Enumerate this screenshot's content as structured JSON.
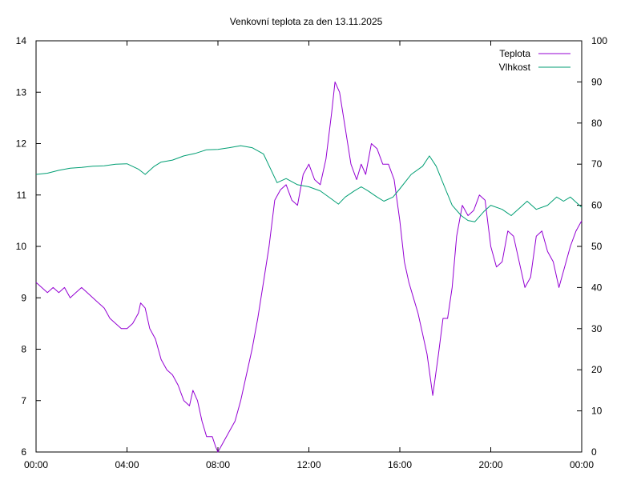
{
  "chart_data": {
    "type": "line",
    "title": "Venkovní teplota za den 13.11.2025",
    "x_ticks": [
      "00:00",
      "04:00",
      "08:00",
      "12:00",
      "16:00",
      "20:00",
      "00:00"
    ],
    "y_left": {
      "min": 6,
      "max": 14,
      "ticks": [
        "6",
        "7",
        "8",
        "9",
        "10",
        "11",
        "12",
        "13",
        "14"
      ]
    },
    "y_right": {
      "min": 0,
      "max": 100,
      "ticks": [
        "0",
        "10",
        "20",
        "30",
        "40",
        "50",
        "60",
        "70",
        "80",
        "90",
        "100"
      ]
    },
    "x_range_hours": [
      0,
      24
    ],
    "legend_position": "top-right",
    "series": [
      {
        "name": "Teplota",
        "axis": "left",
        "color": "#9400d3",
        "points": [
          [
            0.0,
            9.3
          ],
          [
            0.25,
            9.2
          ],
          [
            0.5,
            9.1
          ],
          [
            0.75,
            9.2
          ],
          [
            1.0,
            9.1
          ],
          [
            1.25,
            9.2
          ],
          [
            1.5,
            9.0
          ],
          [
            1.75,
            9.1
          ],
          [
            2.0,
            9.2
          ],
          [
            2.25,
            9.1
          ],
          [
            2.5,
            9.0
          ],
          [
            2.75,
            8.9
          ],
          [
            3.0,
            8.8
          ],
          [
            3.25,
            8.6
          ],
          [
            3.5,
            8.5
          ],
          [
            3.75,
            8.4
          ],
          [
            4.0,
            8.4
          ],
          [
            4.25,
            8.5
          ],
          [
            4.5,
            8.7
          ],
          [
            4.6,
            8.9
          ],
          [
            4.8,
            8.8
          ],
          [
            5.0,
            8.4
          ],
          [
            5.25,
            8.2
          ],
          [
            5.5,
            7.8
          ],
          [
            5.75,
            7.6
          ],
          [
            6.0,
            7.5
          ],
          [
            6.25,
            7.3
          ],
          [
            6.5,
            7.0
          ],
          [
            6.75,
            6.9
          ],
          [
            6.9,
            7.2
          ],
          [
            7.1,
            7.0
          ],
          [
            7.3,
            6.6
          ],
          [
            7.5,
            6.3
          ],
          [
            7.75,
            6.3
          ],
          [
            7.9,
            6.1
          ],
          [
            8.0,
            6.0
          ],
          [
            8.25,
            6.2
          ],
          [
            8.5,
            6.4
          ],
          [
            8.75,
            6.6
          ],
          [
            9.0,
            7.0
          ],
          [
            9.25,
            7.5
          ],
          [
            9.5,
            8.0
          ],
          [
            9.75,
            8.6
          ],
          [
            10.0,
            9.3
          ],
          [
            10.25,
            10.0
          ],
          [
            10.5,
            10.9
          ],
          [
            10.75,
            11.1
          ],
          [
            11.0,
            11.2
          ],
          [
            11.25,
            10.9
          ],
          [
            11.5,
            10.8
          ],
          [
            11.75,
            11.4
          ],
          [
            12.0,
            11.6
          ],
          [
            12.25,
            11.3
          ],
          [
            12.5,
            11.2
          ],
          [
            12.75,
            11.7
          ],
          [
            13.0,
            12.6
          ],
          [
            13.15,
            13.2
          ],
          [
            13.35,
            13.0
          ],
          [
            13.6,
            12.3
          ],
          [
            13.85,
            11.6
          ],
          [
            14.1,
            11.3
          ],
          [
            14.3,
            11.6
          ],
          [
            14.5,
            11.4
          ],
          [
            14.75,
            12.0
          ],
          [
            15.0,
            11.9
          ],
          [
            15.25,
            11.6
          ],
          [
            15.5,
            11.6
          ],
          [
            15.75,
            11.3
          ],
          [
            16.0,
            10.5
          ],
          [
            16.2,
            9.7
          ],
          [
            16.4,
            9.3
          ],
          [
            16.6,
            9.0
          ],
          [
            16.8,
            8.7
          ],
          [
            17.0,
            8.3
          ],
          [
            17.2,
            7.9
          ],
          [
            17.45,
            7.1
          ],
          [
            17.7,
            7.9
          ],
          [
            17.9,
            8.6
          ],
          [
            18.1,
            8.6
          ],
          [
            18.3,
            9.2
          ],
          [
            18.5,
            10.2
          ],
          [
            18.75,
            10.8
          ],
          [
            19.0,
            10.6
          ],
          [
            19.25,
            10.7
          ],
          [
            19.5,
            11.0
          ],
          [
            19.75,
            10.9
          ],
          [
            20.0,
            10.0
          ],
          [
            20.25,
            9.6
          ],
          [
            20.5,
            9.7
          ],
          [
            20.75,
            10.3
          ],
          [
            21.0,
            10.2
          ],
          [
            21.25,
            9.7
          ],
          [
            21.5,
            9.2
          ],
          [
            21.75,
            9.4
          ],
          [
            22.0,
            10.2
          ],
          [
            22.25,
            10.3
          ],
          [
            22.5,
            9.9
          ],
          [
            22.75,
            9.7
          ],
          [
            23.0,
            9.2
          ],
          [
            23.25,
            9.6
          ],
          [
            23.5,
            10.0
          ],
          [
            23.75,
            10.3
          ],
          [
            24.0,
            10.5
          ]
        ]
      },
      {
        "name": "Vlhkost",
        "axis": "right",
        "color": "#009e73",
        "points": [
          [
            0.0,
            67.5
          ],
          [
            0.5,
            67.8
          ],
          [
            1.0,
            68.5
          ],
          [
            1.5,
            69.0
          ],
          [
            2.0,
            69.2
          ],
          [
            2.5,
            69.5
          ],
          [
            3.0,
            69.6
          ],
          [
            3.5,
            70.0
          ],
          [
            4.0,
            70.1
          ],
          [
            4.5,
            68.8
          ],
          [
            4.8,
            67.5
          ],
          [
            5.2,
            69.5
          ],
          [
            5.5,
            70.5
          ],
          [
            6.0,
            71.0
          ],
          [
            6.5,
            72.0
          ],
          [
            7.0,
            72.6
          ],
          [
            7.5,
            73.5
          ],
          [
            8.0,
            73.6
          ],
          [
            8.5,
            74.0
          ],
          [
            9.0,
            74.5
          ],
          [
            9.5,
            74.0
          ],
          [
            10.0,
            72.5
          ],
          [
            10.3,
            69.0
          ],
          [
            10.6,
            65.5
          ],
          [
            11.0,
            66.5
          ],
          [
            11.5,
            65.0
          ],
          [
            12.0,
            64.5
          ],
          [
            12.5,
            63.5
          ],
          [
            13.0,
            61.5
          ],
          [
            13.3,
            60.3
          ],
          [
            13.6,
            62.0
          ],
          [
            14.0,
            63.5
          ],
          [
            14.3,
            64.5
          ],
          [
            14.6,
            63.5
          ],
          [
            15.0,
            62.0
          ],
          [
            15.3,
            61.0
          ],
          [
            15.7,
            62.0
          ],
          [
            16.0,
            64.0
          ],
          [
            16.5,
            67.5
          ],
          [
            17.0,
            69.5
          ],
          [
            17.3,
            72.0
          ],
          [
            17.6,
            69.5
          ],
          [
            18.0,
            64.0
          ],
          [
            18.3,
            60.0
          ],
          [
            18.7,
            57.5
          ],
          [
            19.0,
            56.3
          ],
          [
            19.3,
            56.0
          ],
          [
            19.7,
            58.5
          ],
          [
            20.0,
            60.0
          ],
          [
            20.5,
            59.0
          ],
          [
            20.9,
            57.5
          ],
          [
            21.3,
            59.5
          ],
          [
            21.6,
            61.0
          ],
          [
            22.0,
            59.0
          ],
          [
            22.5,
            60.0
          ],
          [
            22.9,
            62.0
          ],
          [
            23.2,
            61.0
          ],
          [
            23.5,
            62.0
          ],
          [
            24.0,
            59.5
          ]
        ]
      }
    ]
  }
}
